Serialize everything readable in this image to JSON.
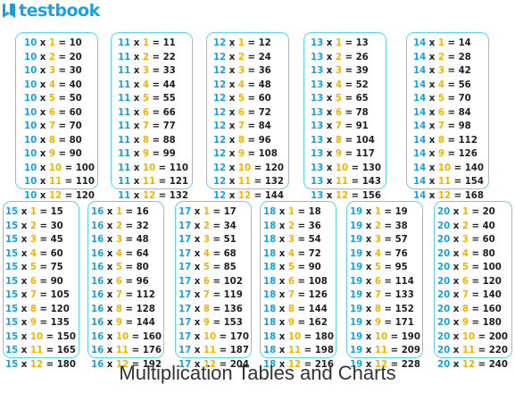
{
  "brand": {
    "name": "testbook",
    "icon": "testbook-logo-icon"
  },
  "caption": "Multiplication Tables and Charts",
  "colors": {
    "number": "#1aa0d8",
    "multiplier": "#f0b400",
    "text": "#1f1f1f",
    "border": "#5ed3f0"
  },
  "tables": [
    {
      "base": 10,
      "rows": [
        {
          "m": "1",
          "r": "10"
        },
        {
          "m": "2",
          "r": "20"
        },
        {
          "m": "3",
          "r": "30"
        },
        {
          "m": "4",
          "r": "40"
        },
        {
          "m": "5",
          "r": "50"
        },
        {
          "m": "6",
          "r": "60"
        },
        {
          "m": "7",
          "r": "70"
        },
        {
          "m": "8",
          "r": "80"
        },
        {
          "m": "9",
          "r": "90"
        },
        {
          "m": "10",
          "r": "100"
        },
        {
          "m": "11",
          "r": "110"
        },
        {
          "m": "12",
          "r": "120"
        }
      ]
    },
    {
      "base": 11,
      "rows": [
        {
          "m": "1",
          "r": "11"
        },
        {
          "m": "2",
          "r": "22"
        },
        {
          "m": "3",
          "r": "33"
        },
        {
          "m": "4",
          "r": "44"
        },
        {
          "m": "5",
          "r": "55"
        },
        {
          "m": "6",
          "r": "66"
        },
        {
          "m": "7",
          "r": "77"
        },
        {
          "m": "8",
          "r": "88"
        },
        {
          "m": "9",
          "r": "99"
        },
        {
          "m": "10",
          "r": "110"
        },
        {
          "m": "11",
          "r": "121"
        },
        {
          "m": "12",
          "r": "132"
        }
      ]
    },
    {
      "base": 12,
      "rows": [
        {
          "m": "1",
          "r": "12"
        },
        {
          "m": "2",
          "r": "24"
        },
        {
          "m": "3",
          "r": "36"
        },
        {
          "m": "4",
          "r": "48"
        },
        {
          "m": "5",
          "r": "60"
        },
        {
          "m": "6",
          "r": "72"
        },
        {
          "m": "7",
          "r": "84"
        },
        {
          "m": "8",
          "r": "96"
        },
        {
          "m": "9",
          "r": "108"
        },
        {
          "m": "10",
          "r": "120"
        },
        {
          "m": "11",
          "r": "132"
        },
        {
          "m": "12",
          "r": "144"
        }
      ]
    },
    {
      "base": 13,
      "rows": [
        {
          "m": "1",
          "r": "13"
        },
        {
          "m": "2",
          "r": "26"
        },
        {
          "m": "3",
          "r": "39"
        },
        {
          "m": "4",
          "r": "52"
        },
        {
          "m": "5",
          "r": "65"
        },
        {
          "m": "6",
          "r": "78"
        },
        {
          "m": "7",
          "r": "91"
        },
        {
          "m": "8",
          "r": "104"
        },
        {
          "m": "9",
          "r": "117"
        },
        {
          "m": "10",
          "r": "130"
        },
        {
          "m": "11",
          "r": "143"
        },
        {
          "m": "12",
          "r": "156"
        }
      ]
    },
    {
      "base": 14,
      "rows": [
        {
          "m": "1",
          "r": "14"
        },
        {
          "m": "2",
          "r": "28"
        },
        {
          "m": "3",
          "r": "42"
        },
        {
          "m": "4",
          "r": "56"
        },
        {
          "m": "5",
          "r": "70"
        },
        {
          "m": "6",
          "r": "84"
        },
        {
          "m": "7",
          "r": "98"
        },
        {
          "m": "8",
          "r": "112"
        },
        {
          "m": "9",
          "r": "126"
        },
        {
          "m": "10",
          "r": "140"
        },
        {
          "m": "11",
          "r": "154"
        },
        {
          "m": "12",
          "r": "168"
        }
      ]
    },
    {
      "base": 15,
      "rows": [
        {
          "m": "1",
          "r": "15"
        },
        {
          "m": "2",
          "r": "30"
        },
        {
          "m": "3",
          "r": "45"
        },
        {
          "m": "4",
          "r": "60"
        },
        {
          "m": "5",
          "r": "75"
        },
        {
          "m": "6",
          "r": "90"
        },
        {
          "m": "7",
          "r": "105"
        },
        {
          "m": "8",
          "r": "120"
        },
        {
          "m": "9",
          "r": "135"
        },
        {
          "m": "10",
          "r": "150"
        },
        {
          "m": "11",
          "r": "165"
        },
        {
          "m": "12",
          "r": "180"
        }
      ]
    },
    {
      "base": 16,
      "rows": [
        {
          "m": "1",
          "r": "16"
        },
        {
          "m": "2",
          "r": "32"
        },
        {
          "m": "3",
          "r": "48"
        },
        {
          "m": "4",
          "r": "64"
        },
        {
          "m": "5",
          "r": "80"
        },
        {
          "m": "6",
          "r": "96"
        },
        {
          "m": "7",
          "r": "112"
        },
        {
          "m": "8",
          "r": "128"
        },
        {
          "m": "9",
          "r": "144"
        },
        {
          "m": "10",
          "r": "160"
        },
        {
          "m": "11",
          "r": "176"
        },
        {
          "m": "12",
          "r": "192"
        }
      ]
    },
    {
      "base": 17,
      "rows": [
        {
          "m": "1",
          "r": "17"
        },
        {
          "m": "2",
          "r": "34"
        },
        {
          "m": "3",
          "r": "51"
        },
        {
          "m": "4",
          "r": "68"
        },
        {
          "m": "5",
          "r": "85"
        },
        {
          "m": "6",
          "r": "102"
        },
        {
          "m": "7",
          "r": "119"
        },
        {
          "m": "8",
          "r": "136"
        },
        {
          "m": "9",
          "r": "153"
        },
        {
          "m": "10",
          "r": "170"
        },
        {
          "m": "11",
          "r": "187"
        },
        {
          "m": "12",
          "r": "204"
        }
      ]
    },
    {
      "base": 18,
      "rows": [
        {
          "m": "1",
          "r": "18"
        },
        {
          "m": "2",
          "r": "36"
        },
        {
          "m": "3",
          "r": "54"
        },
        {
          "m": "4",
          "r": "72"
        },
        {
          "m": "5",
          "r": "90"
        },
        {
          "m": "6",
          "r": "108"
        },
        {
          "m": "7",
          "r": "126"
        },
        {
          "m": "8",
          "r": "144"
        },
        {
          "m": "9",
          "r": "162"
        },
        {
          "m": "10",
          "r": "180"
        },
        {
          "m": "11",
          "r": "198"
        },
        {
          "m": "12",
          "r": "216"
        }
      ]
    },
    {
      "base": 19,
      "rows": [
        {
          "m": "1",
          "r": "19"
        },
        {
          "m": "2",
          "r": "38"
        },
        {
          "m": "3",
          "r": "57"
        },
        {
          "m": "4",
          "r": "76"
        },
        {
          "m": "5",
          "r": "95"
        },
        {
          "m": "6",
          "r": "114"
        },
        {
          "m": "7",
          "r": "133"
        },
        {
          "m": "8",
          "r": "152"
        },
        {
          "m": "9",
          "r": "171"
        },
        {
          "m": "10",
          "r": "190"
        },
        {
          "m": "11",
          "r": "209"
        },
        {
          "m": "12",
          "r": "228"
        }
      ]
    },
    {
      "base": 20,
      "rows": [
        {
          "m": "1",
          "r": "20"
        },
        {
          "m": "2",
          "r": "40"
        },
        {
          "m": "3",
          "r": "60"
        },
        {
          "m": "4",
          "r": "80"
        },
        {
          "m": "5",
          "r": "100"
        },
        {
          "m": "6",
          "r": "120"
        },
        {
          "m": "7",
          "r": "140"
        },
        {
          "m": "8",
          "r": "160"
        },
        {
          "m": "9",
          "r": "180"
        },
        {
          "m": "10",
          "r": "200"
        },
        {
          "m": "11",
          "r": "220"
        },
        {
          "m": "12",
          "r": "240"
        }
      ]
    }
  ]
}
